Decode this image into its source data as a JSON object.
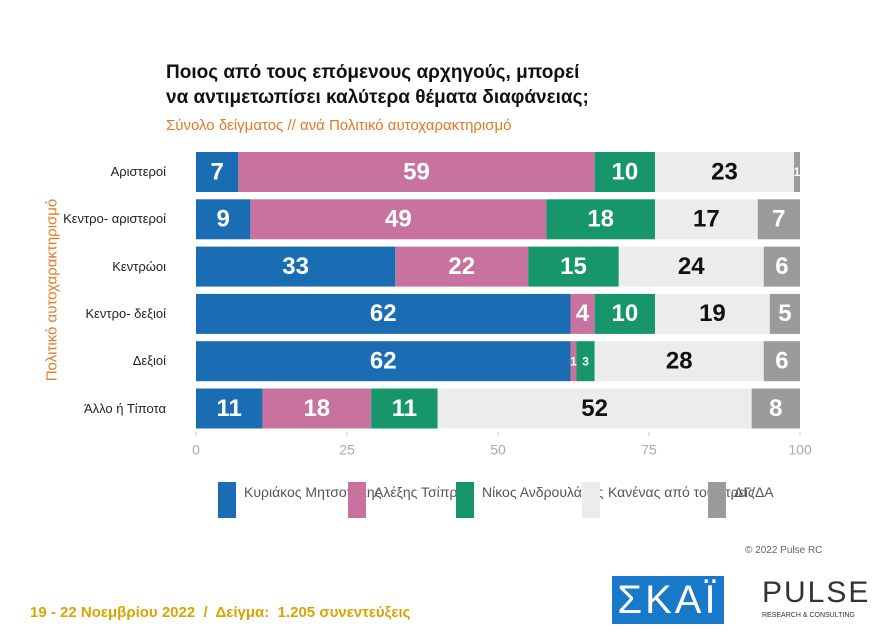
{
  "chart_data": {
    "type": "stacked-bar-horizontal",
    "title": "Ποιος από τους επόμενους αρχηγούς, μπορεί\nνα αντιμετωπίσει καλύτερα θέματα διαφάνειας;",
    "subtitle": "Σύνολο δείγματος // ανά Πολιτικό αυτοχαρακτηρισμό",
    "y_label": "Πολιτικό αυτοχαρακτηρισμό",
    "categories": [
      "Αριστεροί",
      "Κεντρο-\nαριστεροί",
      "Κεντρώοι",
      "Κεντρο-\nδεξιοί",
      "Δεξιοί",
      "Άλλο ή\nΤίποτα"
    ],
    "series": [
      {
        "name": "Κυριάκος\nΜητσοτάκης",
        "color": "#1a6db3",
        "label_color": "#ffffff",
        "values": [
          7,
          9,
          33,
          62,
          62,
          11
        ]
      },
      {
        "name": "Αλέξης\nΤσίπρας",
        "color": "#c7729f",
        "label_color": "#ffffff",
        "values": [
          59,
          49,
          22,
          4,
          1,
          18
        ]
      },
      {
        "name": "Νίκος\nΑνδρουλάκης",
        "color": "#16966a",
        "label_color": "#ffffff",
        "values": [
          10,
          18,
          15,
          10,
          3,
          11
        ]
      },
      {
        "name": "Κανένας από\nτους τρεις",
        "color": "#ececec",
        "label_color": "#111111",
        "values": [
          23,
          17,
          24,
          19,
          28,
          52
        ]
      },
      {
        "name": "ΔΓ/ΔΑ",
        "color": "#9b9b9b",
        "label_color": "#ffffff",
        "values": [
          1,
          7,
          6,
          5,
          6,
          8
        ]
      }
    ],
    "xlim": [
      0,
      100
    ],
    "xticks": [
      0,
      25,
      50,
      75,
      100
    ],
    "footer": "19 - 22 Νοεμβρίου 2022  /  Δείγμα:  1.205 συνεντεύξεις",
    "copyright": "© 2022 Pulse RC",
    "logo_left": "ΣΚΑΪ",
    "logo_right": "PULSE",
    "logo_right_sub": "RESEARCH & CONSULTING"
  }
}
